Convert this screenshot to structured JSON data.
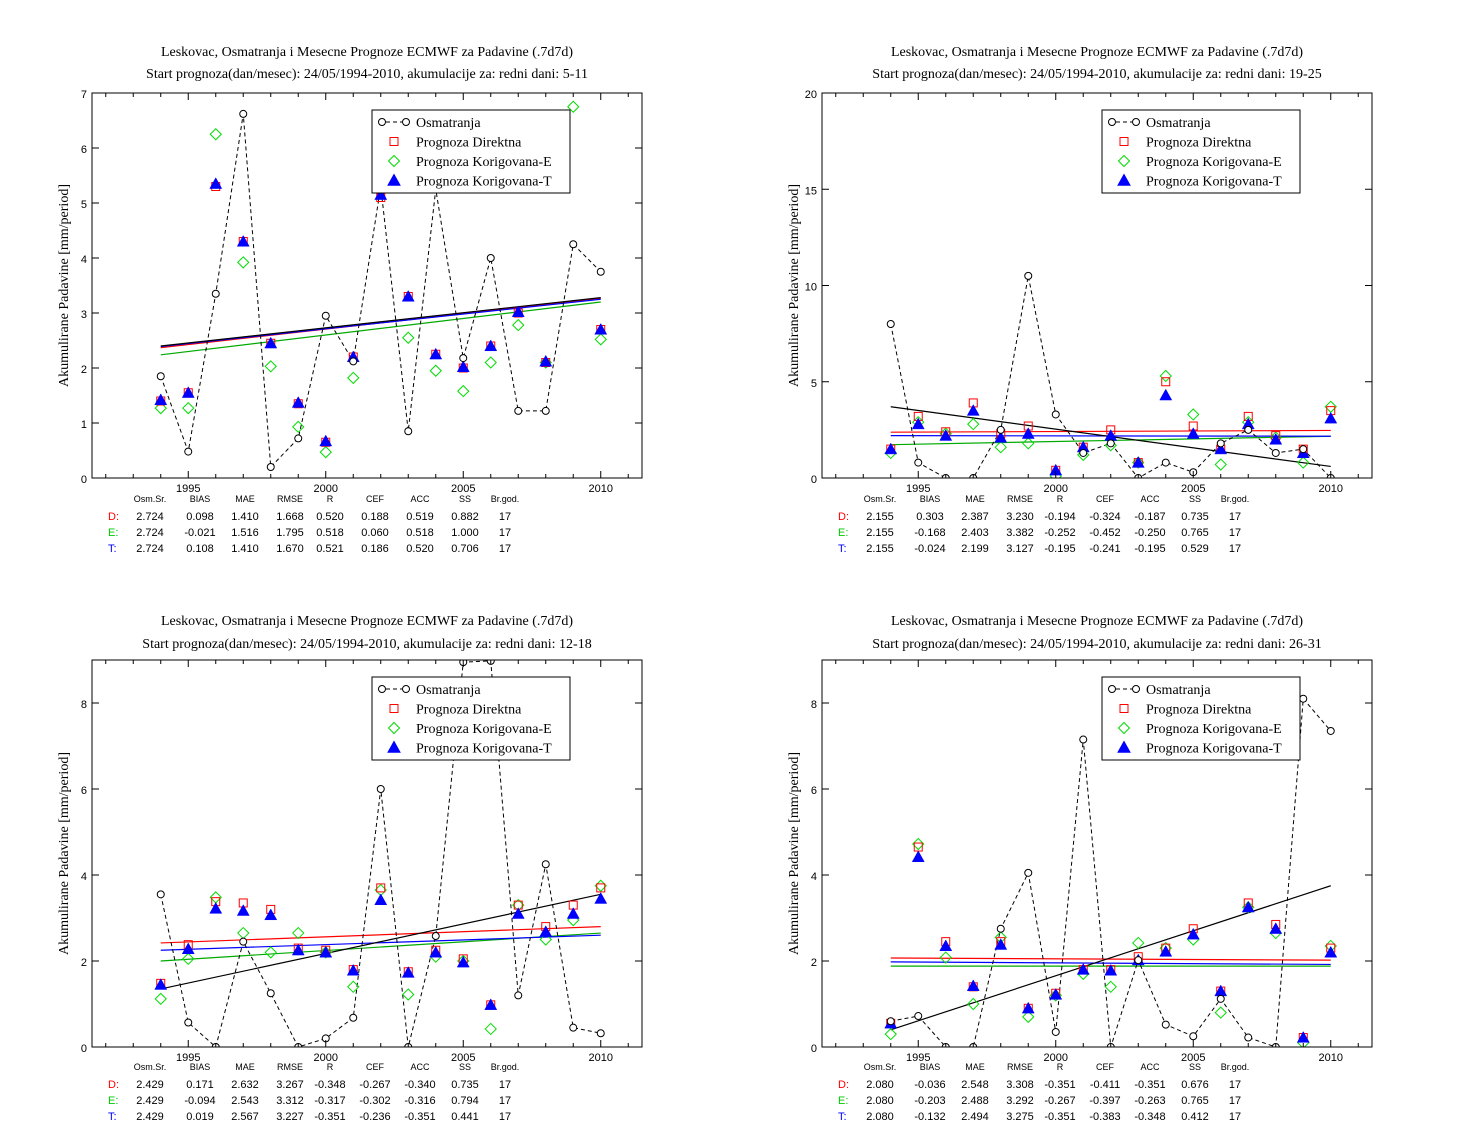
{
  "chart_data": [
    {
      "type": "scatter",
      "title": "Leskovac, Osmatranja i Mesecne Prognoze ECMWF za Padavine (.7d7d)",
      "subtitle": "Start prognoza(dan/mesec): 24/05/1994-2010, akumulacije za: redni dani: 5-11",
      "ylabel": "Akumulirane Padavine [mm/period]",
      "xlim": [
        1991.5,
        2011.5
      ],
      "ylim": [
        0,
        7
      ],
      "xticks": [
        1995,
        2000,
        2005,
        2010
      ],
      "yticks": [
        0,
        1,
        2,
        3,
        4,
        5,
        6,
        7
      ],
      "legend_position": "top-right",
      "legend": [
        "Osmatranja",
        "Prognoza Direktna",
        "Prognoza Korigovana-E",
        "Prognoza Korigovana-T"
      ],
      "x": [
        1994,
        1995,
        1996,
        1997,
        1998,
        1999,
        2000,
        2001,
        2002,
        2003,
        2004,
        2005,
        2006,
        2007,
        2008,
        2009,
        2010
      ],
      "obs": [
        1.85,
        0.48,
        3.35,
        6.62,
        0.2,
        0.72,
        2.95,
        2.12,
        5.3,
        0.85,
        5.25,
        2.18,
        4.0,
        1.22,
        1.22,
        4.25,
        3.75
      ],
      "direct": [
        1.4,
        1.55,
        5.3,
        4.3,
        2.45,
        1.35,
        0.65,
        2.2,
        5.1,
        3.3,
        2.25,
        2.0,
        2.4,
        3.0,
        2.1,
        null,
        2.7
      ],
      "corr_e": [
        1.27,
        1.27,
        6.25,
        3.92,
        2.03,
        0.93,
        0.47,
        1.82,
        5.7,
        2.55,
        1.95,
        1.58,
        2.1,
        2.78,
        2.1,
        6.75,
        2.52
      ],
      "corr_t": [
        1.42,
        1.55,
        5.35,
        4.3,
        2.45,
        1.37,
        0.67,
        2.2,
        5.15,
        3.3,
        2.25,
        2.02,
        2.4,
        3.02,
        2.12,
        null,
        2.7
      ],
      "trend_obs": [
        [
          1994,
          2.4
        ],
        [
          2010,
          3.28
        ]
      ],
      "trend_direct": [
        [
          1994,
          2.37
        ],
        [
          2010,
          3.27
        ]
      ],
      "trend_e": [
        [
          1994,
          2.24
        ],
        [
          2010,
          3.2
        ]
      ],
      "trend_t": [
        [
          1994,
          2.39
        ],
        [
          2010,
          3.25
        ]
      ],
      "stats": {
        "header": [
          "Osm.Sr.",
          "BIAS",
          "MAE",
          "RMSE",
          "R",
          "CEF",
          "ACC",
          "SS",
          "Br.god."
        ],
        "rows": [
          {
            "label": "D:",
            "values": [
              "2.724",
              "0.098",
              "1.410",
              "1.668",
              "0.520",
              "0.188",
              "0.519",
              "0.882",
              "17"
            ]
          },
          {
            "label": "E:",
            "values": [
              "2.724",
              "-0.021",
              "1.516",
              "1.795",
              "0.518",
              "0.060",
              "0.518",
              "1.000",
              "17"
            ]
          },
          {
            "label": "T:",
            "values": [
              "2.724",
              "0.108",
              "1.410",
              "1.670",
              "0.521",
              "0.186",
              "0.520",
              "0.706",
              "17"
            ]
          }
        ]
      }
    },
    {
      "type": "scatter",
      "title": "Leskovac, Osmatranja i Mesecne Prognoze ECMWF za Padavine (.7d7d)",
      "subtitle": "Start prognoza(dan/mesec): 24/05/1994-2010, akumulacije za: redni dani: 19-25",
      "ylabel": "Akumulirane Padavine [mm/period]",
      "xlim": [
        1991.5,
        2011.5
      ],
      "ylim": [
        0,
        20
      ],
      "xticks": [
        1995,
        2000,
        2005,
        2010
      ],
      "yticks": [
        0,
        5,
        10,
        15,
        20
      ],
      "legend_position": "top-right",
      "legend": [
        "Osmatranja",
        "Prognoza Direktna",
        "Prognoza Korigovana-E",
        "Prognoza Korigovana-T"
      ],
      "x": [
        1994,
        1995,
        1996,
        1997,
        1998,
        1999,
        2000,
        2001,
        2002,
        2003,
        2004,
        2005,
        2006,
        2007,
        2008,
        2009,
        2010
      ],
      "obs": [
        8.0,
        0.8,
        0.0,
        0.0,
        2.5,
        10.5,
        3.3,
        1.3,
        1.8,
        0.0,
        0.8,
        0.3,
        1.8,
        2.5,
        1.3,
        1.5,
        0.0
      ],
      "direct": [
        1.5,
        3.2,
        2.4,
        3.9,
        2.3,
        2.7,
        0.4,
        1.6,
        2.5,
        0.8,
        5.0,
        2.7,
        1.5,
        3.2,
        2.2,
        1.5,
        3.5
      ],
      "corr_e": [
        1.3,
        2.9,
        2.3,
        2.8,
        1.6,
        1.8,
        0.1,
        1.2,
        1.7,
        0.8,
        5.3,
        3.3,
        0.7,
        2.9,
        2.1,
        0.8,
        3.7
      ],
      "corr_t": [
        1.5,
        2.8,
        2.2,
        3.5,
        2.1,
        2.3,
        0.4,
        1.6,
        2.2,
        0.8,
        4.3,
        2.3,
        1.5,
        2.8,
        2.0,
        1.3,
        3.1
      ],
      "trend_obs": [
        [
          1994,
          3.7
        ],
        [
          2010,
          0.6
        ]
      ],
      "trend_direct": [
        [
          1994,
          2.38
        ],
        [
          2010,
          2.47
        ]
      ],
      "trend_e": [
        [
          1994,
          1.73
        ],
        [
          2010,
          2.17
        ]
      ],
      "trend_t": [
        [
          1994,
          2.2
        ],
        [
          2010,
          2.17
        ]
      ],
      "stats": {
        "header": [
          "Osm.Sr.",
          "BIAS",
          "MAE",
          "RMSE",
          "R",
          "CEF",
          "ACC",
          "SS",
          "Br.god."
        ],
        "rows": [
          {
            "label": "D:",
            "values": [
              "2.155",
              "0.303",
              "2.387",
              "3.230",
              "-0.194",
              "-0.324",
              "-0.187",
              "0.735",
              "17"
            ]
          },
          {
            "label": "E:",
            "values": [
              "2.155",
              "-0.168",
              "2.403",
              "3.382",
              "-0.252",
              "-0.452",
              "-0.250",
              "0.765",
              "17"
            ]
          },
          {
            "label": "T:",
            "values": [
              "2.155",
              "-0.024",
              "2.199",
              "3.127",
              "-0.195",
              "-0.241",
              "-0.195",
              "0.529",
              "17"
            ]
          }
        ]
      }
    },
    {
      "type": "scatter",
      "title": "Leskovac, Osmatranja i Mesecne Prognoze ECMWF za Padavine (.7d7d)",
      "subtitle": "Start prognoza(dan/mesec): 24/05/1994-2010, akumulacije za: redni dani: 12-18",
      "ylabel": "Akumulirane Padavine [mm/period]",
      "xlim": [
        1991.5,
        2011.5
      ],
      "ylim": [
        0,
        9
      ],
      "xticks": [
        1995,
        2000,
        2005,
        2010
      ],
      "yticks": [
        0,
        2,
        4,
        6,
        8
      ],
      "legend_position": "top-right",
      "legend": [
        "Osmatranja",
        "Prognoza Direktna",
        "Prognoza Korigovana-E",
        "Prognoza Korigovana-T"
      ],
      "x": [
        1994,
        1995,
        1996,
        1997,
        1998,
        1999,
        2000,
        2001,
        2002,
        2003,
        2004,
        2005,
        2006,
        2007,
        2008,
        2009,
        2010
      ],
      "obs": [
        3.55,
        0.57,
        0.0,
        2.45,
        1.25,
        0.0,
        0.2,
        0.68,
        6.0,
        0.0,
        2.58,
        8.95,
        8.98,
        1.2,
        4.25,
        0.45,
        0.32
      ],
      "direct": [
        1.48,
        2.38,
        3.38,
        3.35,
        3.2,
        2.3,
        2.25,
        1.8,
        3.7,
        1.75,
        2.25,
        2.05,
        0.98,
        3.3,
        2.8,
        3.3,
        3.7
      ],
      "corr_e": [
        1.12,
        2.05,
        3.48,
        2.65,
        2.2,
        2.65,
        2.2,
        1.4,
        3.65,
        1.22,
        2.1,
        2.0,
        0.42,
        3.3,
        2.5,
        2.95,
        3.75
      ],
      "corr_t": [
        1.45,
        2.28,
        3.22,
        3.17,
        3.07,
        2.25,
        2.2,
        1.78,
        3.42,
        1.73,
        2.2,
        1.97,
        0.98,
        3.1,
        2.68,
        3.1,
        3.45
      ],
      "trend_obs": [
        [
          1994,
          1.35
        ],
        [
          2010,
          3.55
        ]
      ],
      "trend_direct": [
        [
          1994,
          2.42
        ],
        [
          2010,
          2.8
        ]
      ],
      "trend_e": [
        [
          1994,
          2.0
        ],
        [
          2010,
          2.65
        ]
      ],
      "trend_t": [
        [
          1994,
          2.25
        ],
        [
          2010,
          2.6
        ]
      ],
      "stats": {
        "header": [
          "Osm.Sr.",
          "BIAS",
          "MAE",
          "RMSE",
          "R",
          "CEF",
          "ACC",
          "SS",
          "Br.god."
        ],
        "rows": [
          {
            "label": "D:",
            "values": [
              "2.429",
              "0.171",
              "2.632",
              "3.267",
              "-0.348",
              "-0.267",
              "-0.340",
              "0.735",
              "17"
            ]
          },
          {
            "label": "E:",
            "values": [
              "2.429",
              "-0.094",
              "2.543",
              "3.312",
              "-0.317",
              "-0.302",
              "-0.316",
              "0.794",
              "17"
            ]
          },
          {
            "label": "T:",
            "values": [
              "2.429",
              "0.019",
              "2.567",
              "3.227",
              "-0.351",
              "-0.236",
              "-0.351",
              "0.441",
              "17"
            ]
          }
        ]
      }
    },
    {
      "type": "scatter",
      "title": "Leskovac, Osmatranja i Mesecne Prognoze ECMWF za Padavine (.7d7d)",
      "subtitle": "Start prognoza(dan/mesec): 24/05/1994-2010, akumulacije za: redni dani: 26-31",
      "ylabel": "Akumulirane Padavine [mm/period]",
      "xlim": [
        1991.5,
        2011.5
      ],
      "ylim": [
        0,
        9
      ],
      "xticks": [
        1995,
        2000,
        2005,
        2010
      ],
      "yticks": [
        0,
        2,
        4,
        6,
        8
      ],
      "legend_position": "top-right",
      "legend": [
        "Osmatranja",
        "Prognoza Direktna",
        "Prognoza Korigovana-E",
        "Prognoza Korigovana-T"
      ],
      "x": [
        1994,
        1995,
        1996,
        1997,
        1998,
        1999,
        2000,
        2001,
        2002,
        2003,
        2004,
        2005,
        2006,
        2007,
        2008,
        2009,
        2010
      ],
      "obs": [
        0.6,
        0.72,
        0.0,
        0.0,
        2.75,
        4.05,
        0.35,
        7.15,
        0.0,
        2.02,
        0.52,
        0.25,
        1.12,
        0.22,
        0.0,
        8.1,
        7.35
      ],
      "direct": [
        0.55,
        4.65,
        2.45,
        1.4,
        2.45,
        0.9,
        1.25,
        1.8,
        1.8,
        2.1,
        2.3,
        2.75,
        1.3,
        3.35,
        2.85,
        0.22,
        2.3
      ],
      "corr_e": [
        0.3,
        4.72,
        2.08,
        1.0,
        2.55,
        0.7,
        1.2,
        1.7,
        1.4,
        2.42,
        2.3,
        2.5,
        0.8,
        3.25,
        2.65,
        0.1,
        2.35
      ],
      "corr_t": [
        0.55,
        4.42,
        2.35,
        1.42,
        2.38,
        0.9,
        1.22,
        1.8,
        1.78,
        2.02,
        2.22,
        2.62,
        1.3,
        3.25,
        2.75,
        0.22,
        2.2
      ],
      "trend_obs": [
        [
          1994,
          0.4
        ],
        [
          2010,
          3.75
        ]
      ],
      "trend_direct": [
        [
          1994,
          2.07
        ],
        [
          2010,
          2.02
        ]
      ],
      "trend_e": [
        [
          1994,
          1.88
        ],
        [
          2010,
          1.88
        ]
      ],
      "trend_t": [
        [
          1994,
          1.98
        ],
        [
          2010,
          1.92
        ]
      ],
      "stats": {
        "header": [
          "Osm.Sr.",
          "BIAS",
          "MAE",
          "RMSE",
          "R",
          "CEF",
          "ACC",
          "SS",
          "Br.god."
        ],
        "rows": [
          {
            "label": "D:",
            "values": [
              "2.080",
              "-0.036",
              "2.548",
              "3.308",
              "-0.351",
              "-0.411",
              "-0.351",
              "0.676",
              "17"
            ]
          },
          {
            "label": "E:",
            "values": [
              "2.080",
              "-0.203",
              "2.488",
              "3.292",
              "-0.267",
              "-0.397",
              "-0.263",
              "0.765",
              "17"
            ]
          },
          {
            "label": "T:",
            "values": [
              "2.080",
              "-0.132",
              "2.494",
              "3.275",
              "-0.351",
              "-0.383",
              "-0.348",
              "0.412",
              "17"
            ]
          }
        ]
      }
    }
  ],
  "colors": {
    "obs": "#000000",
    "direct": "#ff0000",
    "corr_e": "#00dd00",
    "corr_t": "#0000ff",
    "trend_obs": "#000000",
    "trend_direct": "#ff0000",
    "trend_e": "#00aa00",
    "trend_t": "#0000ff",
    "trend_mix": "#a000a0"
  }
}
